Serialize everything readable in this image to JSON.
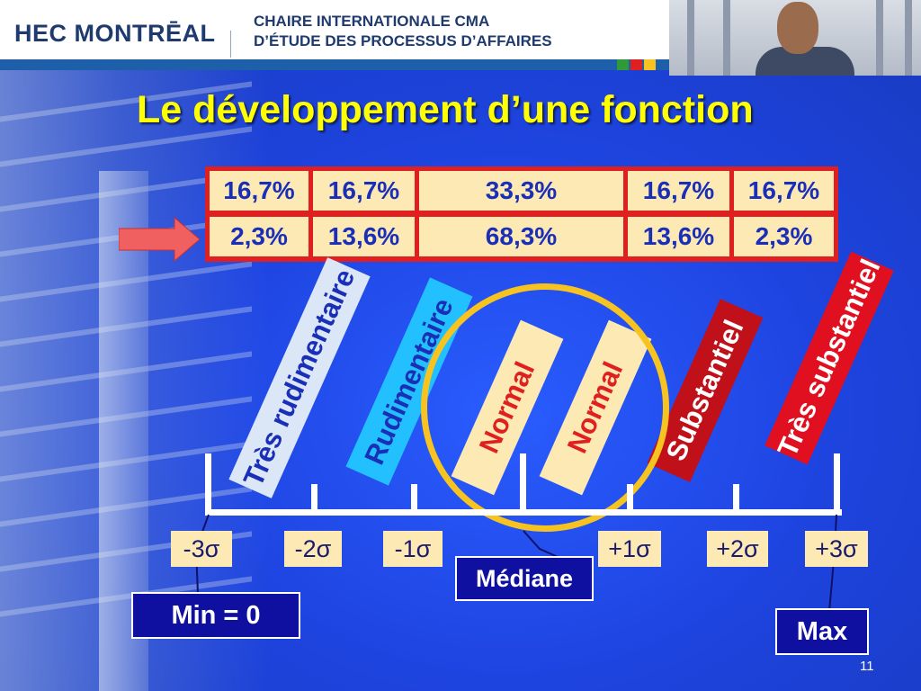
{
  "header": {
    "logo_text": "HEC MONTRĒAL",
    "chaire_line1": "CHAIRE INTERNATIONALE CMA",
    "chaire_line2": "D’ÉTUDE DES PROCESSUS D’AFFAIRES",
    "color_squares": [
      "#2e9a3a",
      "#e02020",
      "#f7c320"
    ]
  },
  "slide": {
    "title": "Le développement d’une fonction",
    "page_number": "11"
  },
  "table": {
    "row1": [
      "16,7%",
      "16,7%",
      "33,3%",
      "16,7%",
      "16,7%"
    ],
    "row2": [
      "2,3%",
      "13,6%",
      "68,3%",
      "13,6%",
      "2,3%"
    ]
  },
  "categories": [
    {
      "label": "Très rudimentaire",
      "bg": "#dbe6f7",
      "color": "#1a2fb8"
    },
    {
      "label": "Rudimentaire",
      "bg": "#22c0ff",
      "color": "#1a2fb8"
    },
    {
      "label": "Normal",
      "bg": "#fde9b4",
      "color": "#e02020"
    },
    {
      "label": "Normal",
      "bg": "#fde9b4",
      "color": "#e02020"
    },
    {
      "label": "Substantiel",
      "bg": "#c0101a",
      "color": "#ffffff"
    },
    {
      "label": "Très substantiel",
      "bg": "#e01020",
      "color": "#ffffff"
    }
  ],
  "scale": {
    "sigmas": [
      "-3σ",
      "-2σ",
      "-1σ",
      "+1σ",
      "+2σ",
      "+3σ"
    ],
    "median": "Médiane",
    "min": "Min = 0",
    "max": "Max"
  }
}
